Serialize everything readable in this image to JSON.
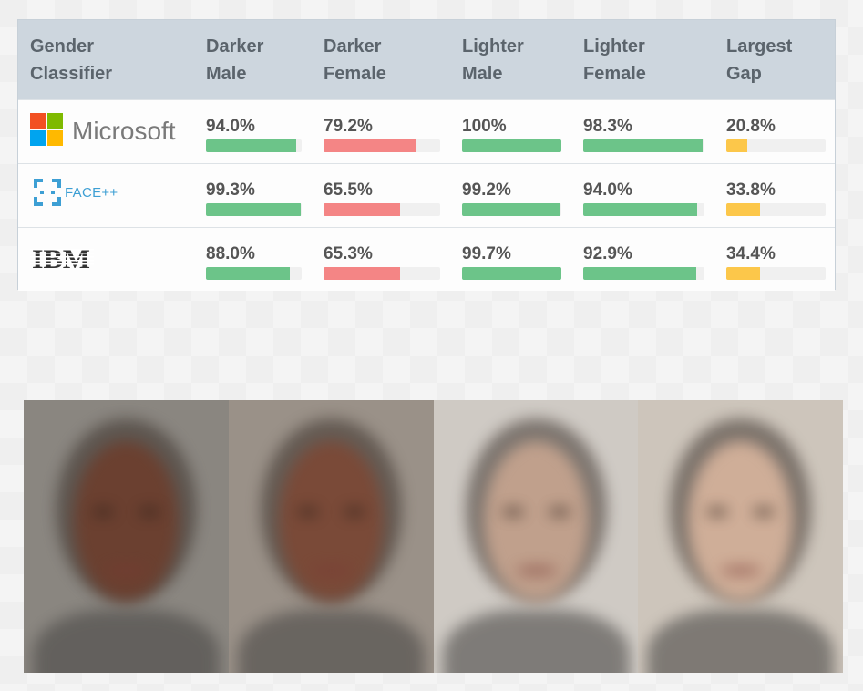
{
  "chart_data": {
    "type": "table",
    "columns": [
      "Gender Classifier",
      "Darker Male",
      "Darker Female",
      "Lighter Male",
      "Lighter Female",
      "Largest Gap"
    ],
    "column_lines": [
      [
        "Gender",
        "Classifier"
      ],
      [
        "Darker",
        "Male"
      ],
      [
        "Darker",
        "Female"
      ],
      [
        "Lighter",
        "Male"
      ],
      [
        "Lighter",
        "Female"
      ],
      [
        "Largest",
        "Gap"
      ]
    ],
    "rows": [
      {
        "classifier": "Microsoft",
        "logo": "microsoft-logo",
        "values": [
          94.0,
          79.2,
          100,
          98.3,
          20.8
        ],
        "labels": [
          "94.0%",
          "79.2%",
          "100%",
          "98.3%",
          "20.8%"
        ]
      },
      {
        "classifier": "FACE++",
        "logo": "faceplusplus-logo",
        "values": [
          99.3,
          65.5,
          99.2,
          94.0,
          33.8
        ],
        "labels": [
          "99.3%",
          "65.5%",
          "99.2%",
          "94.0%",
          "33.8%"
        ]
      },
      {
        "classifier": "IBM",
        "logo": "ibm-logo",
        "values": [
          88.0,
          65.3,
          99.7,
          92.9,
          34.4
        ],
        "labels": [
          "88.0%",
          "65.3%",
          "99.7%",
          "92.9%",
          "34.4%"
        ]
      }
    ],
    "bar_range": [
      0,
      100
    ],
    "bar_colors": [
      "#6cc489",
      "#f48585",
      "#6cc489",
      "#6cc489",
      "#fcc74a"
    ]
  },
  "faces": [
    {
      "name": "darker-male-average-face",
      "skin": "#6b4030",
      "bg": "#8a8680"
    },
    {
      "name": "darker-female-average-face",
      "skin": "#7a4a38",
      "bg": "#9a9188"
    },
    {
      "name": "lighter-male-average-face",
      "skin": "#c0a08c",
      "bg": "#cfcac4"
    },
    {
      "name": "lighter-female-average-face",
      "skin": "#cfae98",
      "bg": "#cdc5bb"
    }
  ]
}
